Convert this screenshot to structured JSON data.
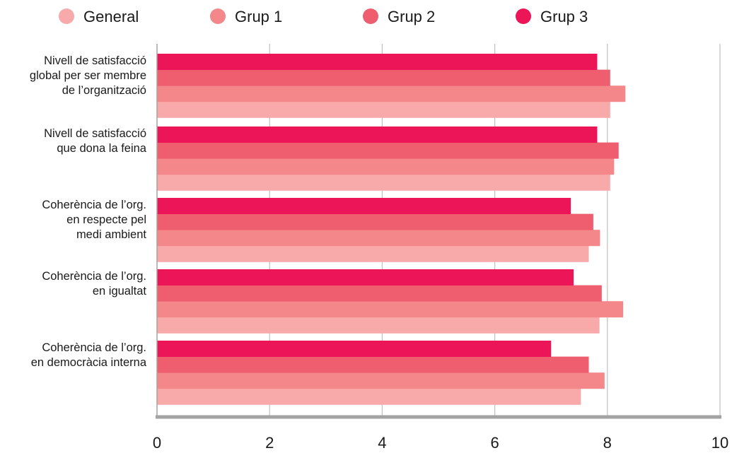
{
  "chart_data": {
    "type": "bar",
    "orientation": "horizontal",
    "categories": [
      [
        "Nivell de satisfacció",
        "global per ser membre",
        "de l’organització"
      ],
      [
        "Nivell de satisfacció",
        "que dona la feina"
      ],
      [
        "Coherència de l’org.",
        "en respecte pel",
        "medi ambient"
      ],
      [
        "Coherència de l’org.",
        "en igualtat"
      ],
      [
        "Coherència de l’org.",
        "en democràcia interna"
      ]
    ],
    "series": [
      {
        "name": "General",
        "color": "#f8a9a9",
        "values": [
          8.05,
          8.05,
          7.67,
          7.86,
          7.53
        ]
      },
      {
        "name": "Grup 1",
        "color": "#f4878a",
        "values": [
          8.32,
          8.12,
          7.87,
          8.28,
          7.95
        ]
      },
      {
        "name": "Grup 2",
        "color": "#ee5e6f",
        "values": [
          8.05,
          8.2,
          7.75,
          7.9,
          7.67
        ]
      },
      {
        "name": "Grup 3",
        "color": "#ec1558",
        "values": [
          7.82,
          7.82,
          7.35,
          7.4,
          7.0
        ]
      }
    ],
    "xlim": [
      0,
      10
    ],
    "xticks": [
      0,
      2,
      4,
      6,
      8,
      10
    ],
    "xtick_labels": [
      "0",
      "2",
      "4",
      "6",
      "8",
      "10"
    ],
    "grid": true,
    "legend_position": "top",
    "axis_color": "#a3a3a3",
    "grid_color": "#c0c0c0"
  }
}
